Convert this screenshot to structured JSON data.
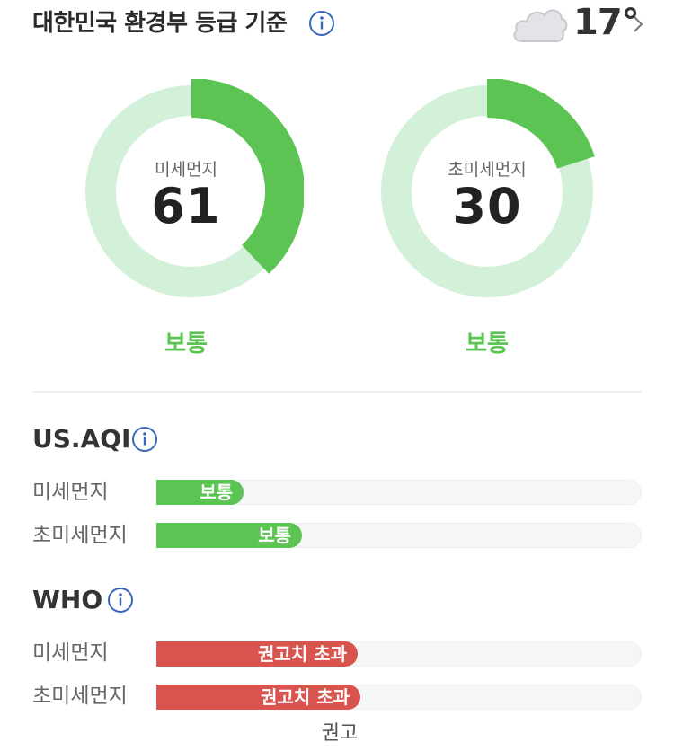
{
  "header": {
    "title": "대한민국 환경부 등급 기준",
    "info_icon": "info-circle-icon",
    "weather_icon": "cloud-icon",
    "temperature": "17°",
    "more_icon": "chevron-right-icon"
  },
  "gauges": [
    {
      "label": "미세먼지",
      "value": "61",
      "grade": "보통",
      "fill_fraction": 0.38
    },
    {
      "label": "초미세먼지",
      "value": "30",
      "grade": "보통",
      "fill_fraction": 0.2
    }
  ],
  "us_aqi": {
    "title": "US.AQI",
    "rows": [
      {
        "label": "미세먼지",
        "status": "보통",
        "level_fraction": 0.18
      },
      {
        "label": "초미세먼지",
        "status": "보통",
        "level_fraction": 0.3
      }
    ]
  },
  "who": {
    "title": "WHO",
    "rows": [
      {
        "label": "미세먼지",
        "status": "권고치 초과",
        "level_fraction": 0.415
      },
      {
        "label": "초미세먼지",
        "status": "권고치 초과",
        "level_fraction": 0.42
      }
    ],
    "marker_label": "권고"
  },
  "colors": {
    "good_green": "#5bc452",
    "track_green": "#d3f0d8",
    "exceed_red": "#d9534f",
    "info_blue": "#3a66b7"
  }
}
